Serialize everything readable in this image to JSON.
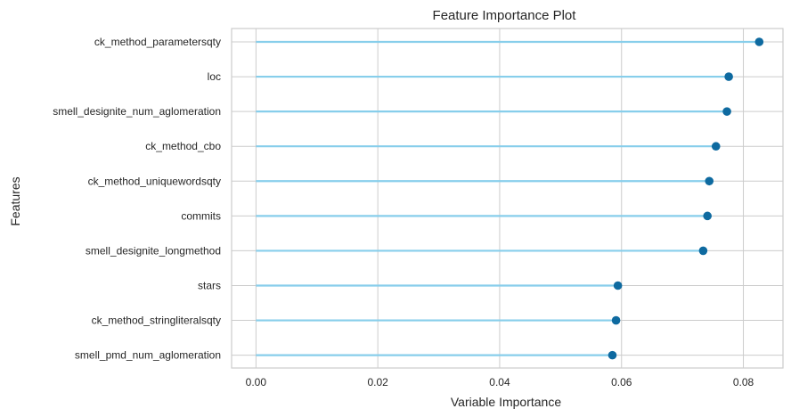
{
  "chart_data": {
    "type": "lollipop",
    "orientation": "horizontal",
    "title": "Feature Importance Plot",
    "xlabel": "Variable Importance",
    "ylabel": "Features",
    "xlim": [
      -0.004,
      0.0865
    ],
    "xticks": [
      0.0,
      0.02,
      0.04,
      0.06,
      0.08
    ],
    "xtick_labels": [
      "0.00",
      "0.02",
      "0.04",
      "0.06",
      "0.08"
    ],
    "grid": true,
    "categories": [
      "ck_method_parametersqty",
      "loc",
      "smell_designite_num_aglomeration",
      "ck_method_cbo",
      "ck_method_uniquewordsqty",
      "commits",
      "smell_designite_longmethod",
      "stars",
      "ck_method_stringliteralsqty",
      "smell_pmd_num_aglomeration"
    ],
    "values": [
      0.0826,
      0.0776,
      0.0773,
      0.0755,
      0.0744,
      0.0741,
      0.0734,
      0.0594,
      0.0591,
      0.0585
    ],
    "colors": {
      "stem": "#87ceeb",
      "marker": "#0e6aa0",
      "grid": "#cccccc",
      "frame": "#cccccc"
    }
  }
}
